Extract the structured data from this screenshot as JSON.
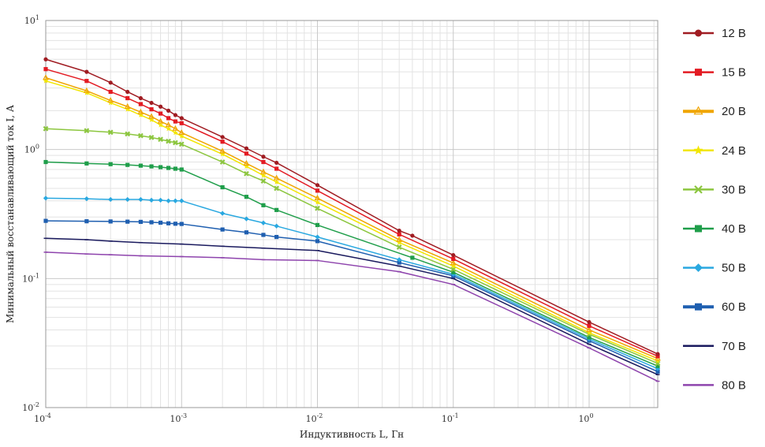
{
  "chart_data": {
    "type": "line",
    "title": "",
    "xlabel": "Индуктивность L, Гн",
    "ylabel": "Минимальный восстанавливающий ток I, А",
    "xscale": "log",
    "yscale": "log",
    "xlim": [
      0.0001,
      3.2
    ],
    "ylim": [
      0.01,
      10
    ],
    "grid": true,
    "legend_position": "right",
    "x_ticks": [
      {
        "value": 0.0001,
        "base": "10",
        "exp": "-4"
      },
      {
        "value": 0.001,
        "base": "10",
        "exp": "-3"
      },
      {
        "value": 0.01,
        "base": "10",
        "exp": "-2"
      },
      {
        "value": 0.1,
        "base": "10",
        "exp": "-1"
      },
      {
        "value": 1,
        "base": "10",
        "exp": "0"
      }
    ],
    "y_ticks": [
      {
        "value": 0.01,
        "base": "10",
        "exp": "-2"
      },
      {
        "value": 0.1,
        "base": "10",
        "exp": "-1"
      },
      {
        "value": 1,
        "base": "10",
        "exp": "0"
      },
      {
        "value": 10,
        "base": "10",
        "exp": "1"
      }
    ],
    "series": [
      {
        "name": "12 В",
        "color": "#a01c22",
        "marker": "circle",
        "x": [
          0.0001,
          0.0002,
          0.0003,
          0.0004,
          0.0005,
          0.0006,
          0.0007,
          0.0008,
          0.0009,
          0.001,
          0.002,
          0.003,
          0.004,
          0.005,
          0.01,
          0.04,
          0.05,
          0.1,
          1,
          3.2
        ],
        "y": [
          5.0,
          4.0,
          3.3,
          2.8,
          2.5,
          2.3,
          2.15,
          2.0,
          1.85,
          1.75,
          1.25,
          1.02,
          0.88,
          0.79,
          0.53,
          0.235,
          0.215,
          0.152,
          0.046,
          0.026
        ]
      },
      {
        "name": "15 В",
        "color": "#e31b23",
        "marker": "square",
        "x": [
          0.0001,
          0.0002,
          0.0003,
          0.0004,
          0.0005,
          0.0006,
          0.0007,
          0.0008,
          0.0009,
          0.001,
          0.002,
          0.003,
          0.004,
          0.005,
          0.01,
          0.04,
          0.1,
          1,
          3.2
        ],
        "y": [
          4.2,
          3.4,
          2.8,
          2.5,
          2.25,
          2.05,
          1.9,
          1.75,
          1.65,
          1.6,
          1.15,
          0.93,
          0.8,
          0.71,
          0.48,
          0.22,
          0.142,
          0.043,
          0.025
        ]
      },
      {
        "name": "20 В",
        "color": "#f0a500",
        "marker": "triangle",
        "x": [
          0.0001,
          0.0002,
          0.0003,
          0.0004,
          0.0005,
          0.0006,
          0.0007,
          0.0008,
          0.0009,
          0.001,
          0.002,
          0.003,
          0.004,
          0.005,
          0.01,
          0.04,
          0.1,
          1,
          3.2
        ],
        "y": [
          3.6,
          2.85,
          2.4,
          2.15,
          1.95,
          1.8,
          1.65,
          1.55,
          1.45,
          1.35,
          0.97,
          0.78,
          0.67,
          0.6,
          0.42,
          0.2,
          0.132,
          0.04,
          0.024
        ]
      },
      {
        "name": "24 В",
        "color": "#f2e600",
        "marker": "star",
        "x": [
          0.0001,
          0.0002,
          0.0003,
          0.0004,
          0.0005,
          0.0006,
          0.0007,
          0.0008,
          0.0009,
          0.001,
          0.002,
          0.003,
          0.004,
          0.005,
          0.01,
          0.04,
          0.1,
          1,
          3.2
        ],
        "y": [
          3.4,
          2.75,
          2.3,
          2.05,
          1.85,
          1.7,
          1.55,
          1.45,
          1.35,
          1.27,
          0.92,
          0.74,
          0.63,
          0.56,
          0.39,
          0.19,
          0.125,
          0.038,
          0.023
        ]
      },
      {
        "name": "30 В",
        "color": "#8cc63f",
        "marker": "x",
        "x": [
          0.0001,
          0.0002,
          0.0003,
          0.0004,
          0.0005,
          0.0006,
          0.0007,
          0.0008,
          0.0009,
          0.001,
          0.002,
          0.003,
          0.004,
          0.005,
          0.01,
          0.04,
          0.1,
          1,
          3.2
        ],
        "y": [
          1.45,
          1.4,
          1.36,
          1.32,
          1.28,
          1.24,
          1.2,
          1.16,
          1.13,
          1.1,
          0.8,
          0.65,
          0.57,
          0.5,
          0.35,
          0.175,
          0.118,
          0.037,
          0.022
        ]
      },
      {
        "name": "40 В",
        "color": "#1f9e4a",
        "marker": "square",
        "x": [
          0.0001,
          0.0002,
          0.0003,
          0.0004,
          0.0005,
          0.0006,
          0.0007,
          0.0008,
          0.0009,
          0.001,
          0.002,
          0.003,
          0.004,
          0.005,
          0.01,
          0.05,
          0.1,
          1,
          3.2
        ],
        "y": [
          0.8,
          0.78,
          0.77,
          0.76,
          0.75,
          0.74,
          0.73,
          0.72,
          0.71,
          0.7,
          0.51,
          0.43,
          0.37,
          0.34,
          0.26,
          0.145,
          0.112,
          0.035,
          0.021
        ]
      },
      {
        "name": "50 В",
        "color": "#29a8e0",
        "marker": "diamond",
        "x": [
          0.0001,
          0.0002,
          0.0003,
          0.0004,
          0.0005,
          0.0006,
          0.0007,
          0.0008,
          0.0009,
          0.001,
          0.002,
          0.003,
          0.004,
          0.005,
          0.01,
          0.04,
          0.1,
          1,
          3.2
        ],
        "y": [
          0.42,
          0.415,
          0.41,
          0.41,
          0.41,
          0.405,
          0.405,
          0.4,
          0.4,
          0.4,
          0.32,
          0.29,
          0.27,
          0.255,
          0.21,
          0.14,
          0.108,
          0.034,
          0.02
        ]
      },
      {
        "name": "60 В",
        "color": "#1f5fb0",
        "marker": "square",
        "x": [
          0.0001,
          0.0002,
          0.0003,
          0.0004,
          0.0005,
          0.0006,
          0.0007,
          0.0008,
          0.0009,
          0.001,
          0.002,
          0.003,
          0.004,
          0.005,
          0.01,
          0.04,
          0.1,
          1,
          3.2
        ],
        "y": [
          0.28,
          0.278,
          0.277,
          0.276,
          0.275,
          0.273,
          0.271,
          0.268,
          0.266,
          0.265,
          0.24,
          0.228,
          0.218,
          0.21,
          0.195,
          0.133,
          0.105,
          0.033,
          0.019
        ]
      },
      {
        "name": "70 В",
        "color": "#1a1a5e",
        "marker": "dash",
        "x": [
          0.0001,
          0.0002,
          0.0003,
          0.0005,
          0.001,
          0.002,
          0.004,
          0.01,
          0.04,
          0.1,
          1,
          3.2
        ],
        "y": [
          0.205,
          0.2,
          0.195,
          0.19,
          0.185,
          0.178,
          0.172,
          0.165,
          0.125,
          0.1,
          0.031,
          0.018
        ]
      },
      {
        "name": "80 В",
        "color": "#8e44ad",
        "marker": "dash",
        "x": [
          0.0001,
          0.0002,
          0.0003,
          0.0005,
          0.001,
          0.002,
          0.004,
          0.01,
          0.04,
          0.1,
          1,
          3.2
        ],
        "y": [
          0.16,
          0.155,
          0.153,
          0.15,
          0.148,
          0.145,
          0.14,
          0.138,
          0.113,
          0.09,
          0.029,
          0.016
        ]
      }
    ]
  }
}
